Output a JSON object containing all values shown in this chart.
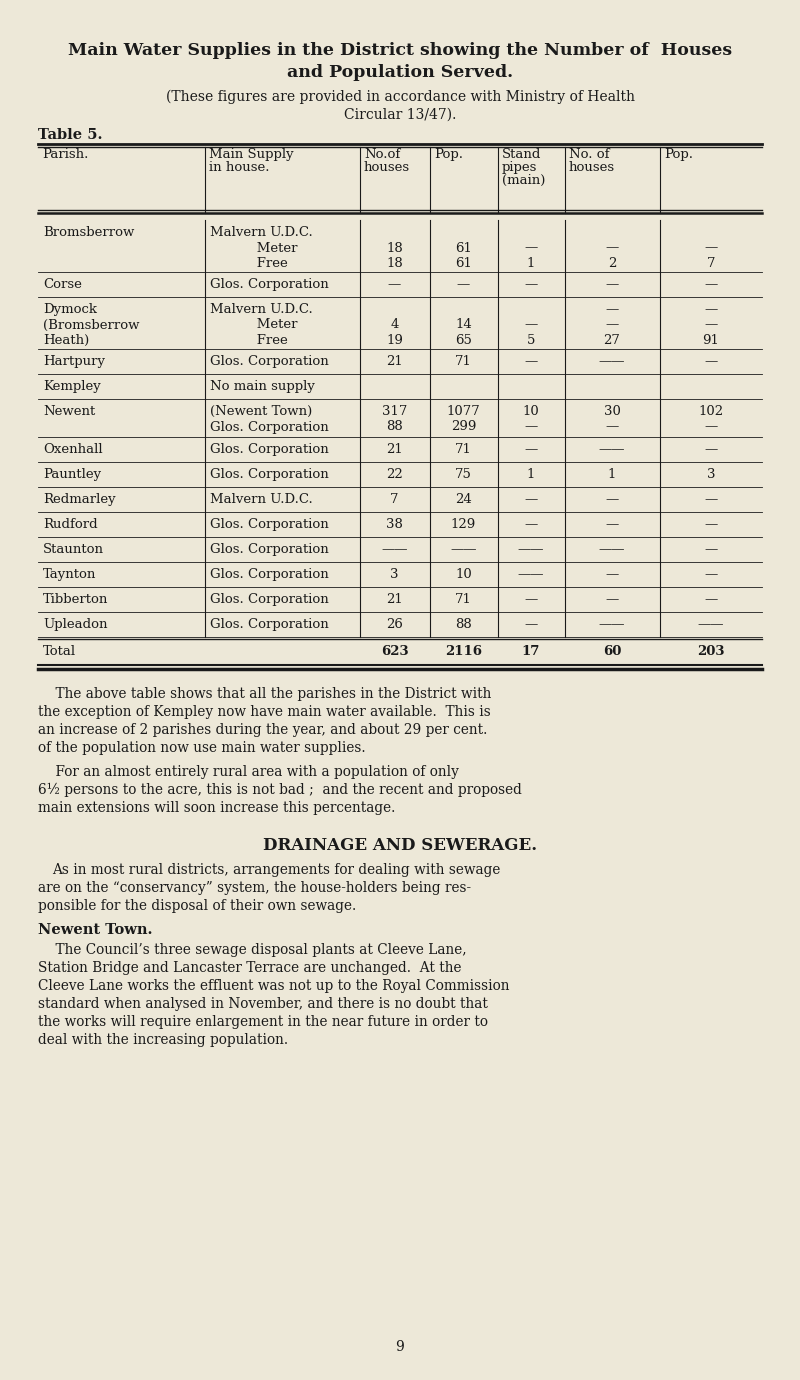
{
  "bg_color": "#ede8d8",
  "title1": "Main Water Supplies in the District showing the Number of  Houses",
  "title2": "and Population Served.",
  "subtitle1": "(These figures are provided in accordance with Ministry of Health",
  "subtitle2": "Circular 13/47).",
  "table_label": "Table 5.",
  "row_data": [
    {
      "parish": "Bromsberrow",
      "supply1": "Malvern U.D.C.",
      "supply2": "Meter",
      "supply3": "Free",
      "h1": "",
      "h2": "18",
      "h3": "18",
      "p1": "",
      "p2": "61",
      "p3": "61",
      "sp1": "",
      "sp2": "—",
      "sp3": "1",
      "sh1": "",
      "sh2": "—",
      "sh3": "2",
      "spp1": "",
      "spp2": "—",
      "spp3": "7",
      "nlines": 3
    },
    {
      "parish": "Corse",
      "supply1": "Glos. Corporation",
      "supply2": "",
      "supply3": "",
      "h1": "—",
      "h2": "",
      "h3": "",
      "p1": "—",
      "p2": "",
      "p3": "",
      "sp1": "—",
      "sp2": "",
      "sp3": "",
      "sh1": "—",
      "sh2": "",
      "sh3": "",
      "spp1": "—",
      "spp2": "",
      "spp3": "",
      "nlines": 1
    },
    {
      "parish": "Dymock",
      "parish2": "(Bromsberrow",
      "parish3": "Heath)",
      "supply1": "Malvern U.D.C.",
      "supply2": "Meter",
      "supply3": "Free",
      "h1": "",
      "h2": "4",
      "h3": "19",
      "p1": "",
      "p2": "14",
      "p3": "65",
      "sp1": "—",
      "sp2": "—",
      "sp3": "5",
      "sh1": "—",
      "sh2": "—",
      "sh3": "27",
      "spp1": "—",
      "spp2": "—",
      "spp3": "91",
      "nlines": 3
    },
    {
      "parish": "Hartpury",
      "supply1": "Glos. Corporation",
      "supply2": "",
      "supply3": "",
      "h1": "21",
      "h2": "",
      "h3": "",
      "p1": "71",
      "p2": "",
      "p3": "",
      "sp1": "—",
      "sp2": "",
      "sp3": "",
      "sh1": "——",
      "sh2": "",
      "sh3": "",
      "spp1": "—",
      "spp2": "",
      "spp3": "",
      "nlines": 1
    },
    {
      "parish": "Kempley",
      "supply1": "No main supply",
      "supply2": "",
      "supply3": "",
      "h1": "",
      "h2": "",
      "h3": "",
      "p1": "",
      "p2": "",
      "p3": "",
      "sp1": "",
      "sp2": "",
      "sp3": "",
      "sh1": "",
      "sh2": "",
      "sh3": "",
      "spp1": "",
      "spp2": "",
      "spp3": "",
      "nlines": 1
    },
    {
      "parish": "Newent",
      "supply1": "(Newent Town)",
      "supply2": "Glos. Corporation",
      "supply3": "",
      "h1": "317",
      "h2": "88",
      "h3": "",
      "p1": "1077",
      "p2": "299",
      "p3": "",
      "sp1": "10",
      "sp2": "—",
      "sp3": "",
      "sh1": "30",
      "sh2": "—",
      "sh3": "",
      "spp1": "102",
      "spp2": "—",
      "spp3": "",
      "nlines": 2
    },
    {
      "parish": "Oxenhall",
      "supply1": "Glos. Corporation",
      "supply2": "",
      "supply3": "",
      "h1": "21",
      "h2": "",
      "h3": "",
      "p1": "71",
      "p2": "",
      "p3": "",
      "sp1": "—",
      "sp2": "",
      "sp3": "",
      "sh1": "——",
      "sh2": "",
      "sh3": "",
      "spp1": "—",
      "spp2": "",
      "spp3": "",
      "nlines": 1
    },
    {
      "parish": "Pauntley",
      "supply1": "Glos. Corporation",
      "supply2": "",
      "supply3": "",
      "h1": "22",
      "h2": "",
      "h3": "",
      "p1": "75",
      "p2": "",
      "p3": "",
      "sp1": "1",
      "sp2": "",
      "sp3": "",
      "sh1": "1",
      "sh2": "",
      "sh3": "",
      "spp1": "3",
      "spp2": "",
      "spp3": "",
      "nlines": 1
    },
    {
      "parish": "Redmarley",
      "supply1": "Malvern U.D.C.",
      "supply2": "",
      "supply3": "",
      "h1": "7",
      "h2": "",
      "h3": "",
      "p1": "24",
      "p2": "",
      "p3": "",
      "sp1": "—",
      "sp2": "",
      "sp3": "",
      "sh1": "—",
      "sh2": "",
      "sh3": "",
      "spp1": "—",
      "spp2": "",
      "spp3": "",
      "nlines": 1
    },
    {
      "parish": "Rudford",
      "supply1": "Glos. Corporation",
      "supply2": "",
      "supply3": "",
      "h1": "38",
      "h2": "",
      "h3": "",
      "p1": "129",
      "p2": "",
      "p3": "",
      "sp1": "—",
      "sp2": "",
      "sp3": "",
      "sh1": "—",
      "sh2": "",
      "sh3": "",
      "spp1": "—",
      "spp2": "",
      "spp3": "",
      "nlines": 1
    },
    {
      "parish": "Staunton",
      "supply1": "Glos. Corporation",
      "supply2": "",
      "supply3": "",
      "h1": "——",
      "h2": "",
      "h3": "",
      "p1": "——",
      "p2": "",
      "p3": "",
      "sp1": "——",
      "sp2": "",
      "sp3": "",
      "sh1": "——",
      "sh2": "",
      "sh3": "",
      "spp1": "—",
      "spp2": "",
      "spp3": "",
      "nlines": 1
    },
    {
      "parish": "Taynton",
      "supply1": "Glos. Corporation",
      "supply2": "",
      "supply3": "",
      "h1": "3",
      "h2": "",
      "h3": "",
      "p1": "10",
      "p2": "",
      "p3": "",
      "sp1": "——",
      "sp2": "",
      "sp3": "",
      "sh1": "—",
      "sh2": "",
      "sh3": "",
      "spp1": "—",
      "spp2": "",
      "spp3": "",
      "nlines": 1
    },
    {
      "parish": "Tibberton",
      "supply1": "Glos. Corporation",
      "supply2": "",
      "supply3": "",
      "h1": "21",
      "h2": "",
      "h3": "",
      "p1": "71",
      "p2": "",
      "p3": "",
      "sp1": "—",
      "sp2": "",
      "sp3": "",
      "sh1": "—",
      "sh2": "",
      "sh3": "",
      "spp1": "—",
      "spp2": "",
      "spp3": "",
      "nlines": 1
    },
    {
      "parish": "Upleadon",
      "supply1": "Glos. Corporation",
      "supply2": "",
      "supply3": "",
      "h1": "26",
      "h2": "",
      "h3": "",
      "p1": "88",
      "p2": "",
      "p3": "",
      "sp1": "—",
      "sp2": "",
      "sp3": "",
      "sh1": "——",
      "sh2": "",
      "sh3": "",
      "spp1": "——",
      "spp2": "",
      "spp3": "",
      "nlines": 1
    }
  ],
  "body1_lines": [
    "    The above table shows that all the parishes in the District with",
    "the exception of Kempley now have main water available.  This is",
    "an increase of 2 parishes during the year, and about 29 per cent.",
    "of the population now use main water supplies."
  ],
  "body2_lines": [
    "    For an almost entirely rural area with a population of only",
    "6½ persons to the acre, this is not bad ;  and the recent and proposed",
    "main extensions will soon increase this percentage."
  ],
  "drain_title": "DRAINAGE AND SEWERAGE.",
  "drain_lines": [
    "As in most rural districts, arrangements for dealing with sewage",
    "are on the “conservancy” system, the house-holders being res-",
    "ponsible for the disposal of their own sewage."
  ],
  "newent_title": "Newent Town.",
  "newent_lines": [
    "    The Council’s three sewage disposal plants at Cleeve Lane,",
    "Station Bridge and Lancaster Terrace are unchanged.  At the",
    "Cleeve Lane works the effluent was not up to the Royal Commission",
    "standard when analysed in November, and there is no doubt that",
    "the works will require enlargement in the near future in order to",
    "deal with the increasing population."
  ],
  "page_num": "9"
}
